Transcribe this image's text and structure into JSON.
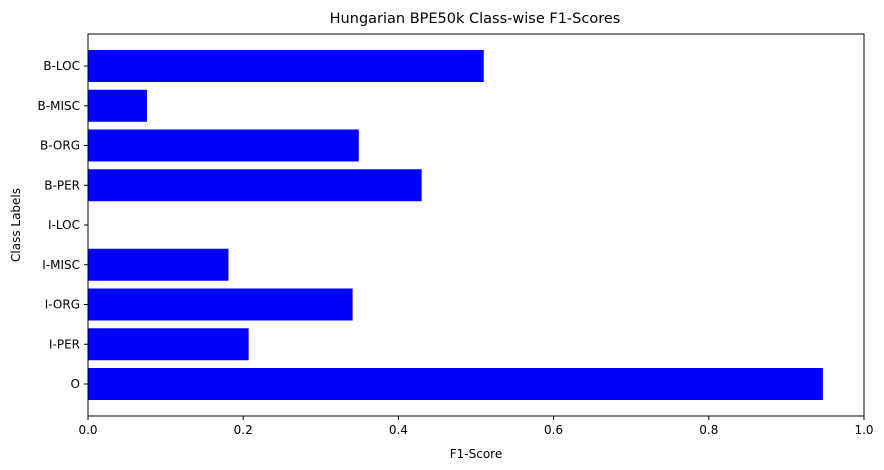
{
  "chart_data": {
    "type": "bar",
    "orientation": "horizontal",
    "title": "Hungarian BPE50k Class-wise F1-Scores",
    "xlabel": "F1-Score",
    "ylabel": "Class Labels",
    "categories": [
      "B-LOC",
      "B-MISC",
      "B-ORG",
      "B-PER",
      "I-LOC",
      "I-MISC",
      "I-ORG",
      "I-PER",
      "O"
    ],
    "values": [
      0.51,
      0.076,
      0.349,
      0.43,
      0.0,
      0.181,
      0.341,
      0.207,
      0.947
    ],
    "xlim": [
      0,
      1.0
    ],
    "xticks": [
      "0.0",
      "0.2",
      "0.4",
      "0.6",
      "0.8",
      "1.0"
    ],
    "bar_color": "#0000ff",
    "grid": false
  }
}
